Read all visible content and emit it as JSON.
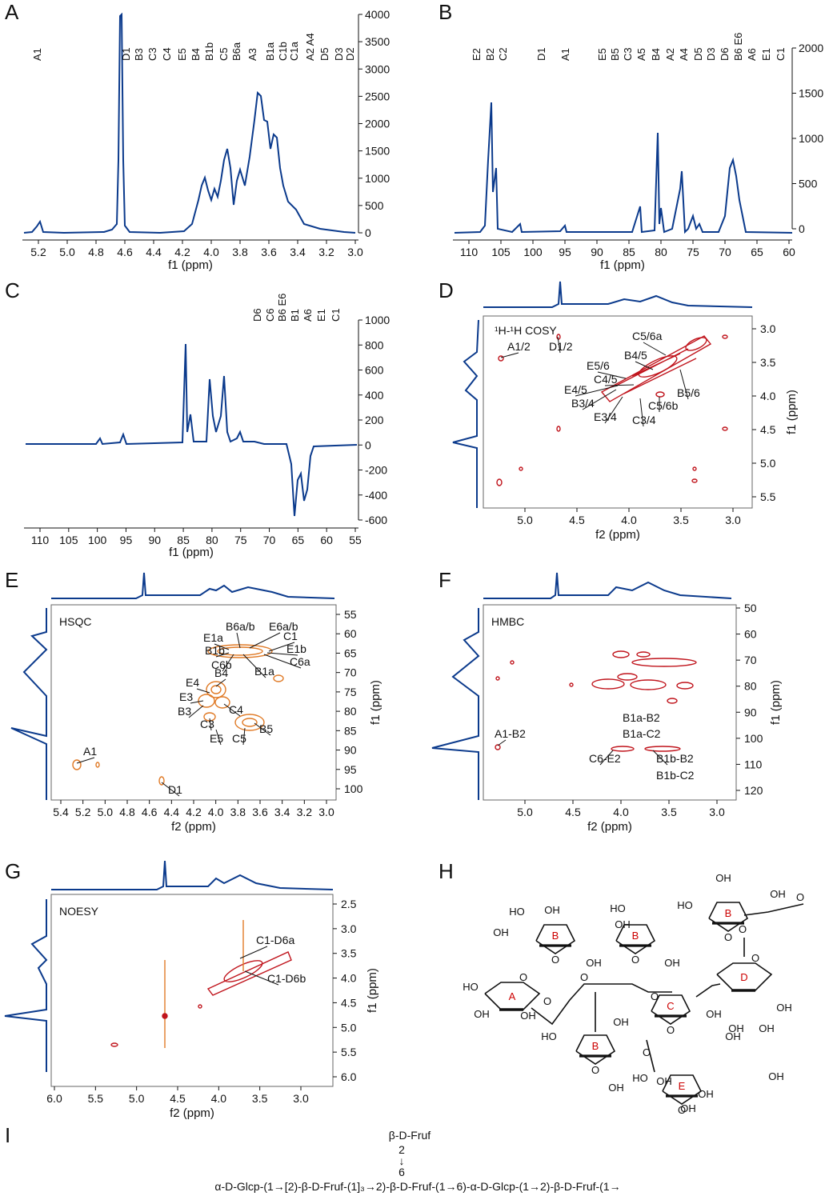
{
  "figure": {
    "panels": {
      "A": {
        "letter": "A",
        "xlabel": "f1 (ppm)",
        "xticks": [
          "5.2",
          "5.0",
          "4.8",
          "4.6",
          "4.4",
          "4.2",
          "4.0",
          "3.8",
          "3.6",
          "3.4",
          "3.2",
          "3.0"
        ],
        "yticks": [
          "4000",
          "3500",
          "3000",
          "2500",
          "2000",
          "1500",
          "1000",
          "500",
          "0"
        ],
        "peaks": [
          "A1",
          "D1",
          "B3",
          "C3",
          "C4",
          "E5",
          "B4",
          "B1b",
          "C5",
          "B6a",
          "A3",
          "B1a",
          "C1b",
          "C1a",
          "A2 A4",
          "D5",
          "D3",
          "D2"
        ]
      },
      "B": {
        "letter": "B",
        "xlabel": "f1 (ppm)",
        "xticks": [
          "110",
          "105",
          "100",
          "95",
          "90",
          "85",
          "80",
          "75",
          "70",
          "65",
          "60"
        ],
        "yticks": [
          "2000",
          "1500",
          "1000",
          "500",
          "0"
        ],
        "peaks": [
          "E2",
          "B2",
          "C2",
          "D1",
          "A1",
          "E5",
          "B5",
          "C3",
          "A5",
          "B4",
          "A2",
          "A4",
          "D5",
          "D3",
          "D6",
          "B6 E6",
          "A6",
          "E1",
          "C1"
        ]
      },
      "C": {
        "letter": "C",
        "xlabel": "f1 (ppm)",
        "xticks": [
          "110",
          "105",
          "100",
          "95",
          "90",
          "85",
          "80",
          "75",
          "70",
          "65",
          "60",
          "55"
        ],
        "yticks": [
          "1000",
          "800",
          "600",
          "400",
          "200",
          "0",
          "-200",
          "-400",
          "-600"
        ],
        "peaks": [
          "D6",
          "C6",
          "B6 E6",
          "B1",
          "A6",
          "E1",
          "C1"
        ]
      },
      "D": {
        "letter": "D",
        "title": "¹H-¹H COSY",
        "xlabel": "f2 (ppm)",
        "ylabel": "f1 (ppm)",
        "xticks": [
          "5.0",
          "4.5",
          "4.0",
          "3.5",
          "3.0"
        ],
        "yticks": [
          "3.0",
          "3.5",
          "4.0",
          "4.5",
          "5.0",
          "5.5"
        ],
        "annotations": [
          "A1/2",
          "D1/2",
          "C5/6a",
          "B4/5",
          "E5/6",
          "C4/5",
          "E4/5",
          "B3/4",
          "E3/4",
          "C3/4",
          "C5/6b",
          "B5/6"
        ]
      },
      "E": {
        "letter": "E",
        "title": "HSQC",
        "xlabel": "f2 (ppm)",
        "ylabel": "f1 (ppm)",
        "xticks": [
          "5.4",
          "5.2",
          "5.0",
          "4.8",
          "4.6",
          "4.4",
          "4.2",
          "4.0",
          "3.8",
          "3.6",
          "3.4",
          "3.2",
          "3.0"
        ],
        "yticks": [
          "55",
          "60",
          "65",
          "70",
          "75",
          "80",
          "85",
          "90",
          "95",
          "100"
        ],
        "annotations": [
          "E1a",
          "B6a/b",
          "E6a/b",
          "C1",
          "E1b",
          "C6a",
          "B1b",
          "C6b",
          "B1a",
          "E4",
          "B4",
          "E3",
          "C4",
          "B3",
          "C3",
          "E5",
          "C5",
          "B5",
          "A1",
          "D1"
        ]
      },
      "F": {
        "letter": "F",
        "title": "HMBC",
        "xlabel": "f2 (ppm)",
        "ylabel": "f1 (ppm)",
        "xticks": [
          "5.0",
          "4.5",
          "4.0",
          "3.5",
          "3.0"
        ],
        "yticks": [
          "50",
          "60",
          "70",
          "80",
          "90",
          "100",
          "110",
          "120"
        ],
        "annotations": [
          "B1a-B2",
          "B1a-C2",
          "A1-B2",
          "C6-E2",
          "B1b-B2",
          "B1b-C2"
        ]
      },
      "G": {
        "letter": "G",
        "title": "NOESY",
        "xlabel": "f2 (ppm)",
        "ylabel": "f1 (ppm)",
        "xticks": [
          "6.0",
          "5.5",
          "5.0",
          "4.5",
          "4.0",
          "3.5",
          "3.0"
        ],
        "yticks": [
          "2.5",
          "3.0",
          "3.5",
          "4.0",
          "4.5",
          "5.0",
          "5.5",
          "6.0"
        ],
        "annotations": [
          "C1-D6a",
          "C1-D6b"
        ]
      },
      "H": {
        "letter": "H",
        "rings": [
          "A",
          "B",
          "B",
          "B",
          "C",
          "D",
          "E"
        ],
        "atoms": {
          "oh": "OH",
          "ho": "HO",
          "o": "O",
          "methoxy_tail": "O"
        }
      },
      "I": {
        "letter": "I",
        "branch_top": "β-D-Fruf",
        "branch_pos_2": "2",
        "branch_arrow": "↓",
        "branch_pos_6": "6",
        "main_chain": "α-D-Glcp-(1→[2)-β-D-Fruf-(1]₃→2)-β-D-Fruf-(1→6)-α-D-Glcp-(1→2)-β-D-Fruf-(1→"
      }
    },
    "colors": {
      "spectrum": "#0b3a8c",
      "contour_red": "#c0141c",
      "contour_orange": "#e07a26",
      "ring_label": "#cc0000"
    }
  }
}
